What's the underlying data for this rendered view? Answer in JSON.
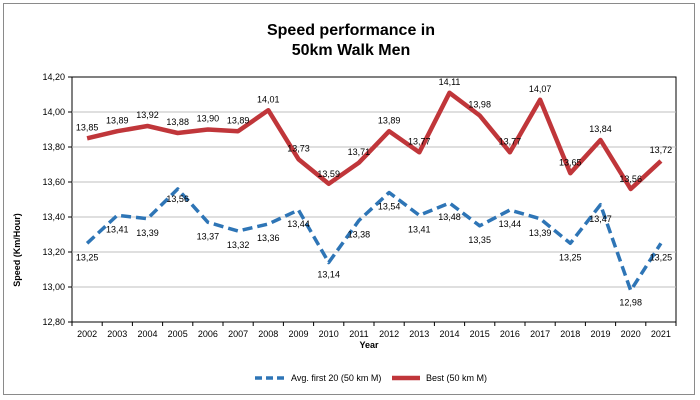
{
  "chart_data": {
    "type": "line",
    "title_lines": [
      "Speed performance in",
      "50km Walk Men"
    ],
    "xlabel": "Year",
    "ylabel": "Speed (Km/Hour)",
    "ylim": [
      12.8,
      14.2
    ],
    "yticks": [
      "12,80",
      "13,00",
      "13,20",
      "13,40",
      "13,60",
      "13,80",
      "14,00",
      "14,20"
    ],
    "grid": true,
    "legend_position": "bottom",
    "categories": [
      "2002",
      "2003",
      "2004",
      "2005",
      "2006",
      "2007",
      "2008",
      "2009",
      "2010",
      "2011",
      "2012",
      "2013",
      "2014",
      "2015",
      "2016",
      "2017",
      "2018",
      "2019",
      "2020",
      "2021"
    ],
    "series": [
      {
        "name": "Avg. first 20 (50 km M)",
        "color": "#2e75b6",
        "dash": true,
        "values": [
          13.25,
          13.41,
          13.39,
          13.56,
          13.37,
          13.32,
          13.36,
          13.44,
          13.14,
          13.38,
          13.54,
          13.41,
          13.48,
          13.35,
          13.44,
          13.39,
          13.25,
          13.47,
          12.98,
          13.25
        ],
        "labels": [
          "13,25",
          "13,41",
          "13,39",
          "13,56",
          "13,37",
          "13,32",
          "13,36",
          "13,44",
          "13,14",
          "13,38",
          "13,54",
          "13,41",
          "13,48",
          "13,35",
          "13,44",
          "13,39",
          "13,25",
          "13,47",
          "12,98",
          "13,25"
        ]
      },
      {
        "name": "Best (50 km M)",
        "color": "#c0363a",
        "dash": false,
        "values": [
          13.85,
          13.89,
          13.92,
          13.88,
          13.9,
          13.89,
          14.01,
          13.73,
          13.59,
          13.71,
          13.89,
          13.77,
          14.11,
          13.98,
          13.77,
          14.07,
          13.65,
          13.84,
          13.56,
          13.72
        ],
        "labels": [
          "13,85",
          "13,89",
          "13,92",
          "13,88",
          "13,90",
          "13,89",
          "14,01",
          "13,73",
          "13,59",
          "13,71",
          "13,89",
          "13,77",
          "14,11",
          "13,98",
          "13,77",
          "14,07",
          "13,65",
          "13,84",
          "13,56",
          "13,72"
        ]
      }
    ]
  }
}
